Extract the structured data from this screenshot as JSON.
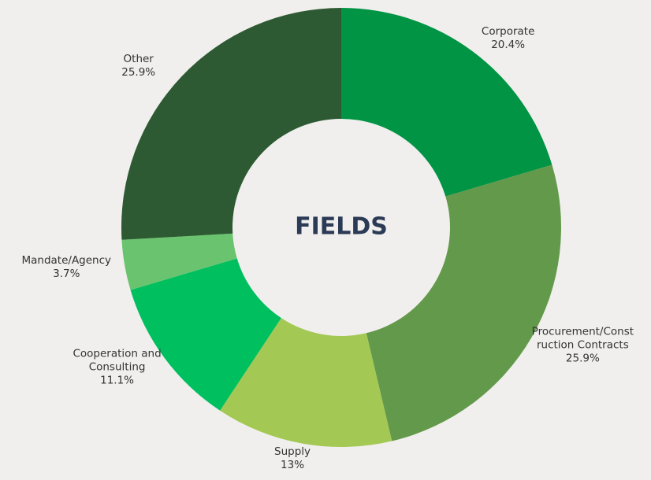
{
  "chart_data": {
    "type": "donut",
    "title": "FIELDS",
    "categories": [
      "Corporate",
      "Procurement/Construction Contracts",
      "Supply",
      "Cooperation and Consulting",
      "Mandate/Agency",
      "Other"
    ],
    "values": [
      20.4,
      25.9,
      13,
      11.1,
      3.7,
      25.9
    ],
    "value_labels": [
      "20.4%",
      "25.9%",
      "13%",
      "11.1%",
      "3.7%",
      "25.9%"
    ],
    "colors": [
      "#009444",
      "#63994a",
      "#a3c853",
      "#00bf5f",
      "#6ac46f",
      "#2d5a32"
    ]
  }
}
